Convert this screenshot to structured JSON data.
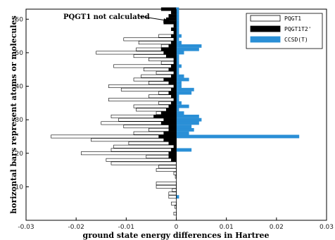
{
  "chart_data": {
    "type": "bar",
    "orientation": "horizontal",
    "title": "",
    "xlabel": "ground state energy differences in Hartree",
    "ylabel": "horizontal bars represent atoms or molecules",
    "xlim": [
      -0.03,
      0.03
    ],
    "ylim": [
      0,
      63
    ],
    "x_ticks": [
      -0.03,
      -0.02,
      -0.01,
      0,
      0.01,
      0.02,
      0.03
    ],
    "x_tick_labels": [
      "-0.03",
      "-0.02",
      "-0.01",
      "0",
      "0.01",
      "0.02",
      "0.03"
    ],
    "y_ticks": [
      10,
      20,
      30,
      40,
      50,
      60
    ],
    "y_tick_labels": [
      "10",
      "20",
      "30",
      "40",
      "50",
      "60"
    ],
    "grid": false,
    "legend_position": "top-right",
    "annotation": "PQGT1 not calculated",
    "series": [
      {
        "name": "PQGT1",
        "color": "#ffffff",
        "values": [
          0,
          -0.0005,
          0,
          -0.0003,
          -0.001,
          0,
          -0.0015,
          -0.0015,
          -0.0008,
          -0.004,
          -0.004,
          0,
          -0.0002,
          -0.0005,
          -0.004,
          -0.0035,
          -0.013,
          -0.014,
          -0.006,
          -0.019,
          -0.013,
          -0.0125,
          -0.0095,
          -0.017,
          -0.025,
          -0.0085,
          -0.0055,
          -0.0105,
          -0.015,
          -0.0115,
          -0.013,
          -0.004,
          -0.008,
          -0.0085,
          -0.0035,
          -0.0135,
          -0.0055,
          -0.0035,
          -0.011,
          -0.0135,
          -0.0055,
          -0.0085,
          -0.007,
          -0.004,
          -0.0065,
          -0.0125,
          -0.003,
          -0.0055,
          -0.0085,
          -0.016,
          -0.008,
          -0.003,
          -0.0075,
          -0.0105,
          -0.0035,
          0,
          0,
          0,
          0,
          0,
          0,
          0,
          0
        ]
      },
      {
        "name": "PQGT1T2'",
        "color": "#000000",
        "values": [
          0,
          0,
          0,
          0,
          0,
          0,
          0,
          0,
          0,
          0,
          0,
          0,
          0,
          0,
          0,
          0,
          0,
          -0.001,
          -0.0015,
          -0.0015,
          -0.001,
          -0.0005,
          -0.0015,
          -0.0025,
          -0.0035,
          -0.0025,
          -0.0015,
          -0.0015,
          -0.003,
          -0.0025,
          -0.0045,
          -0.003,
          -0.002,
          -0.0015,
          -0.001,
          -0.0005,
          -0.001,
          -0.0015,
          -0.001,
          -0.0005,
          -0.0015,
          -0.0025,
          -0.001,
          -0.0005,
          -0.0015,
          -0.001,
          -0.0005,
          -0.0005,
          -0.002,
          -0.0025,
          -0.003,
          -0.0015,
          -0.001,
          -0.0005,
          -0.001,
          -0.0005,
          -0.001,
          -0.0005,
          -0.0025,
          -0.002,
          -0.0015,
          -0.001,
          -0.003
        ]
      },
      {
        "name": "CCSD(T)",
        "color": "#2a8fd6",
        "values": [
          0,
          0,
          0,
          0,
          0,
          0,
          0.0005,
          0,
          0,
          0,
          0,
          0,
          0,
          0,
          0,
          0,
          0,
          0,
          0,
          0,
          0.003,
          0,
          0,
          0,
          0.0245,
          0.0025,
          0.0035,
          0.003,
          0.0045,
          0.005,
          0.0045,
          0.0015,
          0.0005,
          0.0025,
          0.001,
          0.0005,
          0.0005,
          0.003,
          0.0035,
          0.001,
          0.001,
          0.0025,
          0.0015,
          0.0005,
          0.0005,
          0.001,
          0.0005,
          0.0005,
          0.0005,
          0.0015,
          0.0045,
          0.005,
          0.001,
          0.0005,
          0.001,
          0.0005,
          0.0005,
          0.0005,
          0.0005,
          0.0005,
          0.0005,
          0.0005,
          0.0005
        ]
      }
    ]
  }
}
